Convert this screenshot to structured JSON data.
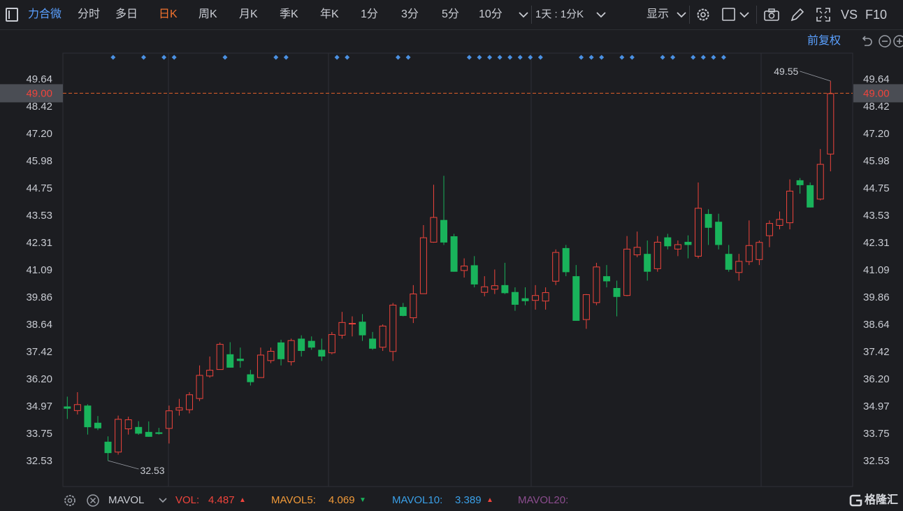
{
  "toolbar": {
    "stock_name": "力合微",
    "tabs": [
      "分时",
      "多日",
      "日K",
      "周K",
      "月K",
      "季K",
      "年K",
      "1分",
      "3分",
      "5分",
      "10分"
    ],
    "active_tab": "日K",
    "period_select": "1天 : 1分K",
    "display_label": "显示",
    "vs_label": "VS",
    "f10_label": "F10"
  },
  "subbar": {
    "adjust_label": "前复权"
  },
  "chart_data": {
    "type": "candlestick",
    "y_ticks": [
      "49.64",
      "48.42",
      "47.20",
      "45.98",
      "44.75",
      "43.53",
      "42.31",
      "41.09",
      "39.86",
      "38.64",
      "37.42",
      "36.20",
      "34.97",
      "33.75",
      "32.53"
    ],
    "ylim": [
      31.9,
      51.0
    ],
    "current_price": "49.00",
    "max_label": "49.55",
    "min_label": "32.53",
    "colors": {
      "up": "#f0443c",
      "down": "#19b35b",
      "price_line": "#e2622a",
      "marker": "#4a90e2"
    },
    "candles": [
      {
        "o": 34.96,
        "h": 35.4,
        "l": 34.4,
        "c": 34.86
      },
      {
        "o": 34.76,
        "h": 35.6,
        "l": 34.6,
        "c": 35.06
      },
      {
        "o": 35.0,
        "h": 35.06,
        "l": 33.7,
        "c": 34.03
      },
      {
        "o": 34.23,
        "h": 34.53,
        "l": 33.9,
        "c": 33.98
      },
      {
        "o": 33.38,
        "h": 33.62,
        "l": 32.53,
        "c": 32.87
      },
      {
        "o": 32.9,
        "h": 34.55,
        "l": 32.8,
        "c": 34.4
      },
      {
        "o": 33.94,
        "h": 34.5,
        "l": 33.7,
        "c": 34.38
      },
      {
        "o": 34.04,
        "h": 34.3,
        "l": 33.69,
        "c": 33.74
      },
      {
        "o": 33.82,
        "h": 34.29,
        "l": 33.6,
        "c": 33.6
      },
      {
        "o": 33.8,
        "h": 34.0,
        "l": 33.7,
        "c": 33.73
      },
      {
        "o": 33.96,
        "h": 35.0,
        "l": 33.3,
        "c": 34.78
      },
      {
        "o": 34.78,
        "h": 35.3,
        "l": 34.55,
        "c": 34.92
      },
      {
        "o": 34.8,
        "h": 35.6,
        "l": 34.65,
        "c": 35.5
      },
      {
        "o": 35.3,
        "h": 36.8,
        "l": 35.2,
        "c": 36.37
      },
      {
        "o": 36.31,
        "h": 37.2,
        "l": 36.25,
        "c": 36.6
      },
      {
        "o": 36.6,
        "h": 37.83,
        "l": 36.6,
        "c": 37.76
      },
      {
        "o": 37.3,
        "h": 37.84,
        "l": 36.7,
        "c": 36.7
      },
      {
        "o": 37.1,
        "h": 37.6,
        "l": 36.7,
        "c": 37.0
      },
      {
        "o": 36.4,
        "h": 36.6,
        "l": 35.9,
        "c": 36.05
      },
      {
        "o": 36.24,
        "h": 37.6,
        "l": 36.24,
        "c": 37.28
      },
      {
        "o": 37.0,
        "h": 37.6,
        "l": 36.9,
        "c": 37.45
      },
      {
        "o": 37.83,
        "h": 37.95,
        "l": 36.8,
        "c": 37.08
      },
      {
        "o": 36.95,
        "h": 38.0,
        "l": 36.8,
        "c": 37.93
      },
      {
        "o": 38.0,
        "h": 38.15,
        "l": 37.2,
        "c": 37.45
      },
      {
        "o": 37.9,
        "h": 38.1,
        "l": 37.5,
        "c": 37.6
      },
      {
        "o": 37.5,
        "h": 38.0,
        "l": 37.0,
        "c": 37.2
      },
      {
        "o": 37.35,
        "h": 38.3,
        "l": 37.3,
        "c": 38.2
      },
      {
        "o": 38.14,
        "h": 39.2,
        "l": 38.0,
        "c": 38.74
      },
      {
        "o": 38.64,
        "h": 39.0,
        "l": 38.1,
        "c": 38.7
      },
      {
        "o": 38.76,
        "h": 39.1,
        "l": 37.9,
        "c": 38.15
      },
      {
        "o": 38.0,
        "h": 38.3,
        "l": 37.5,
        "c": 37.55
      },
      {
        "o": 37.6,
        "h": 38.64,
        "l": 37.45,
        "c": 38.58
      },
      {
        "o": 37.41,
        "h": 39.6,
        "l": 37.0,
        "c": 39.52
      },
      {
        "o": 39.42,
        "h": 39.6,
        "l": 39.0,
        "c": 39.02
      },
      {
        "o": 38.92,
        "h": 40.4,
        "l": 38.7,
        "c": 40.02
      },
      {
        "o": 40.0,
        "h": 43.09,
        "l": 40.0,
        "c": 42.54
      },
      {
        "o": 42.31,
        "h": 44.9,
        "l": 42.3,
        "c": 43.45
      },
      {
        "o": 43.32,
        "h": 45.3,
        "l": 42.2,
        "c": 42.31
      },
      {
        "o": 42.59,
        "h": 42.7,
        "l": 41.0,
        "c": 41.0
      },
      {
        "o": 41.04,
        "h": 41.6,
        "l": 40.74,
        "c": 41.27
      },
      {
        "o": 41.29,
        "h": 41.7,
        "l": 40.3,
        "c": 40.43
      },
      {
        "o": 40.06,
        "h": 40.8,
        "l": 39.9,
        "c": 40.34
      },
      {
        "o": 40.2,
        "h": 41.1,
        "l": 40.0,
        "c": 40.39
      },
      {
        "o": 40.4,
        "h": 41.4,
        "l": 40.0,
        "c": 40.04
      },
      {
        "o": 40.09,
        "h": 40.3,
        "l": 39.25,
        "c": 39.52
      },
      {
        "o": 39.81,
        "h": 40.3,
        "l": 39.5,
        "c": 39.68
      },
      {
        "o": 39.7,
        "h": 40.4,
        "l": 39.3,
        "c": 39.95
      },
      {
        "o": 39.67,
        "h": 40.3,
        "l": 39.3,
        "c": 40.08
      },
      {
        "o": 40.56,
        "h": 42.0,
        "l": 40.4,
        "c": 41.88
      },
      {
        "o": 42.06,
        "h": 42.2,
        "l": 40.8,
        "c": 40.98
      },
      {
        "o": 40.8,
        "h": 41.3,
        "l": 38.8,
        "c": 38.8
      },
      {
        "o": 38.84,
        "h": 40.0,
        "l": 38.44,
        "c": 39.99
      },
      {
        "o": 39.6,
        "h": 41.4,
        "l": 39.5,
        "c": 41.23
      },
      {
        "o": 40.8,
        "h": 41.3,
        "l": 40.3,
        "c": 40.57
      },
      {
        "o": 40.27,
        "h": 40.6,
        "l": 39.0,
        "c": 39.87
      },
      {
        "o": 39.92,
        "h": 42.6,
        "l": 39.9,
        "c": 42.03
      },
      {
        "o": 41.74,
        "h": 42.8,
        "l": 41.65,
        "c": 42.11
      },
      {
        "o": 41.8,
        "h": 42.4,
        "l": 40.6,
        "c": 41.0
      },
      {
        "o": 41.12,
        "h": 42.6,
        "l": 41.0,
        "c": 42.34
      },
      {
        "o": 42.54,
        "h": 42.7,
        "l": 42.0,
        "c": 42.14
      },
      {
        "o": 42.0,
        "h": 42.4,
        "l": 41.7,
        "c": 42.23
      },
      {
        "o": 42.34,
        "h": 42.63,
        "l": 41.6,
        "c": 42.2
      },
      {
        "o": 41.68,
        "h": 45.0,
        "l": 41.6,
        "c": 43.86
      },
      {
        "o": 43.59,
        "h": 43.8,
        "l": 42.2,
        "c": 42.97
      },
      {
        "o": 43.24,
        "h": 43.6,
        "l": 42.0,
        "c": 42.2
      },
      {
        "o": 41.8,
        "h": 42.2,
        "l": 41.0,
        "c": 41.09
      },
      {
        "o": 40.95,
        "h": 41.8,
        "l": 40.6,
        "c": 41.48
      },
      {
        "o": 41.44,
        "h": 43.3,
        "l": 41.3,
        "c": 42.19
      },
      {
        "o": 41.53,
        "h": 42.4,
        "l": 41.3,
        "c": 42.33
      },
      {
        "o": 42.6,
        "h": 43.3,
        "l": 42.1,
        "c": 43.18
      },
      {
        "o": 43.06,
        "h": 43.7,
        "l": 42.9,
        "c": 43.36
      },
      {
        "o": 43.18,
        "h": 45.14,
        "l": 42.9,
        "c": 44.63
      },
      {
        "o": 45.1,
        "h": 45.2,
        "l": 44.5,
        "c": 44.88
      },
      {
        "o": 44.88,
        "h": 45.0,
        "l": 43.88,
        "c": 43.88
      },
      {
        "o": 44.24,
        "h": 46.5,
        "l": 44.2,
        "c": 45.83
      },
      {
        "o": 46.26,
        "h": 49.55,
        "l": 45.5,
        "c": 49.0
      }
    ],
    "markers_before": [
      5,
      8,
      10,
      11,
      16,
      21,
      22,
      27,
      28,
      33,
      34,
      40,
      41,
      42,
      43,
      44,
      45,
      46,
      47,
      51,
      52,
      53,
      55,
      56,
      59,
      60,
      62,
      63,
      64,
      65
    ]
  },
  "indicator": {
    "name": "MAVOL",
    "vol_label": "VOL:",
    "vol_value": "4.487",
    "mavol5_label": "MAVOL5:",
    "mavol5_value": "4.069",
    "mavol10_label": "MAVOL10:",
    "mavol10_value": "3.389",
    "mavol20_label": "MAVOL20:",
    "colors": {
      "vol": "#f0443c",
      "mavol5": "#f29a38",
      "mavol10": "#3aa0e8",
      "mavol20": "#8c4d8f"
    }
  },
  "brand": {
    "name": "格隆汇"
  }
}
